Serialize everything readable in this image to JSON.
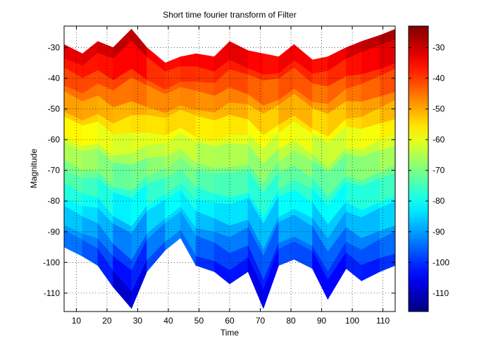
{
  "chart_data": {
    "type": "surface-view",
    "title": "Short time fourier transform of Filter",
    "xlabel": "Time",
    "ylabel": "Magnitude",
    "xlim": [
      6,
      114
    ],
    "ylim": [
      -116,
      -23
    ],
    "xticks": [
      10,
      20,
      30,
      40,
      50,
      60,
      70,
      80,
      90,
      100,
      110
    ],
    "yticks": [
      -30,
      -40,
      -50,
      -60,
      -70,
      -80,
      -90,
      -100,
      -110
    ],
    "grid": true,
    "colormap": "jet",
    "colorbar": {
      "range": [
        -116,
        -23
      ],
      "ticks": [
        -30,
        -40,
        -50,
        -60,
        -70,
        -80,
        -90,
        -100,
        -110
      ],
      "position": "right"
    },
    "x": [
      6,
      12,
      17,
      22,
      28,
      33,
      39,
      44,
      49,
      55,
      60,
      66,
      71,
      76,
      81,
      87,
      92,
      98,
      103,
      109,
      114
    ],
    "upper_envelope": [
      -29,
      -32,
      -28,
      -30,
      -24,
      -30,
      -35,
      -33,
      -32,
      -33,
      -28,
      -31,
      -32,
      -33,
      -29,
      -34,
      -33,
      -30,
      -28,
      -26,
      -24
    ],
    "lower_envelope": [
      -95,
      -98,
      -101,
      -108,
      -115,
      -103,
      -96,
      -92,
      -101,
      -103,
      -107,
      -103,
      -115,
      -101,
      -99,
      -102,
      -112,
      -102,
      -106,
      -103,
      -101
    ]
  },
  "colors": {
    "axes_background": "#ffffff",
    "grid": "#000000",
    "jet_low": "#00008f",
    "jet_high": "#800000"
  }
}
